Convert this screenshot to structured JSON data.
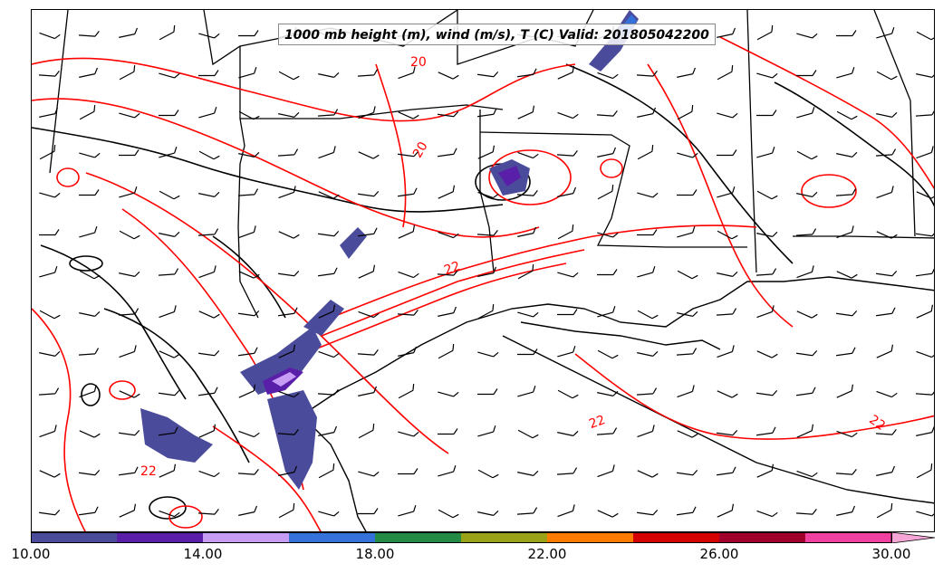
{
  "map": {
    "title": "1000 mb height (m), wind (m/s), T (C) Valid: 201805042200",
    "contour_labels": [
      "20",
      "20",
      "22",
      "22",
      "22",
      "22"
    ],
    "colors": {
      "temperature_contour": "#ff0000",
      "height_contour": "#000000",
      "boundary": "#000000",
      "wind_barb": "#000000"
    }
  },
  "colorbar": {
    "bins": [
      {
        "from": 10,
        "to": 12,
        "color": "#4b4b9c"
      },
      {
        "from": 12,
        "to": 14,
        "color": "#5a1fa8"
      },
      {
        "from": 14,
        "to": 16,
        "color": "#c69cf5"
      },
      {
        "from": 16,
        "to": 18,
        "color": "#3472d9"
      },
      {
        "from": 18,
        "to": 20,
        "color": "#238b45"
      },
      {
        "from": 20,
        "to": 22,
        "color": "#9aa318"
      },
      {
        "from": 22,
        "to": 24,
        "color": "#ff7c00"
      },
      {
        "from": 24,
        "to": 26,
        "color": "#d40000"
      },
      {
        "from": 26,
        "to": 28,
        "color": "#a0002b"
      },
      {
        "from": 28,
        "to": 30,
        "color": "#f040a0"
      },
      {
        "from": 30,
        "to": null,
        "color": "#f6a6d6"
      }
    ],
    "tick_labels": [
      "10.00",
      "14.00",
      "18.00",
      "22.00",
      "26.00",
      "30.00"
    ]
  }
}
